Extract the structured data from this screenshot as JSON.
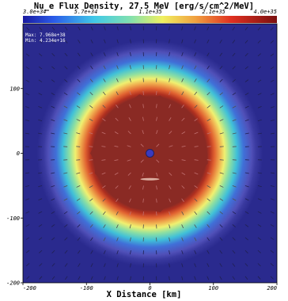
{
  "chart_data": {
    "type": "heatmap",
    "title": "Nu_e Flux Density, 27.5 MeV [erg/s/cm^2/MeV]",
    "xlabel": "X Distance [km]",
    "ylabel": "",
    "xlim": [
      -200,
      200
    ],
    "ylim": [
      -200,
      200
    ],
    "x_ticks": [
      "-200",
      "-100",
      "0",
      "100",
      "200"
    ],
    "y_ticks": [
      "-200",
      "-100",
      "0",
      "100"
    ],
    "colorbar": {
      "scale": "log",
      "min": 3e+34,
      "max": 4e+35,
      "tick_labels": [
        "3.0e+34",
        "5.7e+34",
        "1.1e+35",
        "2.1e+35",
        "4.0e+35"
      ],
      "tick_values": [
        3e+34,
        5.7e+34,
        1.1e+35,
        2.1e+35,
        4e+35
      ]
    },
    "annotations": {
      "max": "Max: 7.968e+38",
      "min": "Min: 4.234e+16"
    },
    "field_description": {
      "structure": "radial",
      "center": [
        0,
        0
      ],
      "core_radius_km": 90,
      "core_value": 4e+35,
      "ring_values": [
        {
          "r": 100,
          "value": 3e+35
        },
        {
          "r": 115,
          "value": 2.1e+35
        },
        {
          "r": 130,
          "value": 1.1e+35
        },
        {
          "r": 145,
          "value": 5.7e+34
        },
        {
          "r": 165,
          "value": 3.5e+34
        }
      ],
      "background_value": 3e+34,
      "vector_field": "radial outward arrows"
    },
    "colors": {
      "background": "#2a2a8e",
      "colormap": [
        "#1a1aa0",
        "#3050e0",
        "#40c8e8",
        "#90e0a0",
        "#f0f060",
        "#f0a040",
        "#e03020",
        "#8a1a1a"
      ]
    }
  }
}
